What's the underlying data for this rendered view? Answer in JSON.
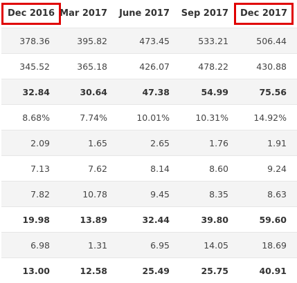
{
  "columns": [
    {
      "label": "Dec 2016",
      "highlighted": true
    },
    {
      "label": "Mar 2017",
      "highlighted": false
    },
    {
      "label": "June 2017",
      "highlighted": false
    },
    {
      "label": "Sep 2017",
      "highlighted": false
    },
    {
      "label": "Dec 2017",
      "highlighted": true
    }
  ],
  "highlight_color": "#e00000",
  "rows": [
    {
      "bold": false,
      "shaded": true,
      "values": [
        "378.36",
        "395.82",
        "473.45",
        "533.21",
        "506.44"
      ]
    },
    {
      "bold": false,
      "shaded": false,
      "values": [
        "345.52",
        "365.18",
        "426.07",
        "478.22",
        "430.88"
      ]
    },
    {
      "bold": true,
      "shaded": true,
      "values": [
        "32.84",
        "30.64",
        "47.38",
        "54.99",
        "75.56"
      ]
    },
    {
      "bold": false,
      "shaded": false,
      "values": [
        "8.68%",
        "7.74%",
        "10.01%",
        "10.31%",
        "14.92%"
      ]
    },
    {
      "bold": false,
      "shaded": true,
      "values": [
        "2.09",
        "1.65",
        "2.65",
        "1.76",
        "1.91"
      ]
    },
    {
      "bold": false,
      "shaded": false,
      "values": [
        "7.13",
        "7.62",
        "8.14",
        "8.60",
        "9.24"
      ]
    },
    {
      "bold": false,
      "shaded": true,
      "values": [
        "7.82",
        "10.78",
        "9.45",
        "8.35",
        "8.63"
      ]
    },
    {
      "bold": true,
      "shaded": false,
      "values": [
        "19.98",
        "13.89",
        "32.44",
        "39.80",
        "59.60"
      ]
    },
    {
      "bold": false,
      "shaded": true,
      "values": [
        "6.98",
        "1.31",
        "6.95",
        "14.05",
        "18.69"
      ]
    },
    {
      "bold": true,
      "shaded": false,
      "values": [
        "13.00",
        "12.58",
        "25.49",
        "25.75",
        "40.91"
      ]
    }
  ]
}
